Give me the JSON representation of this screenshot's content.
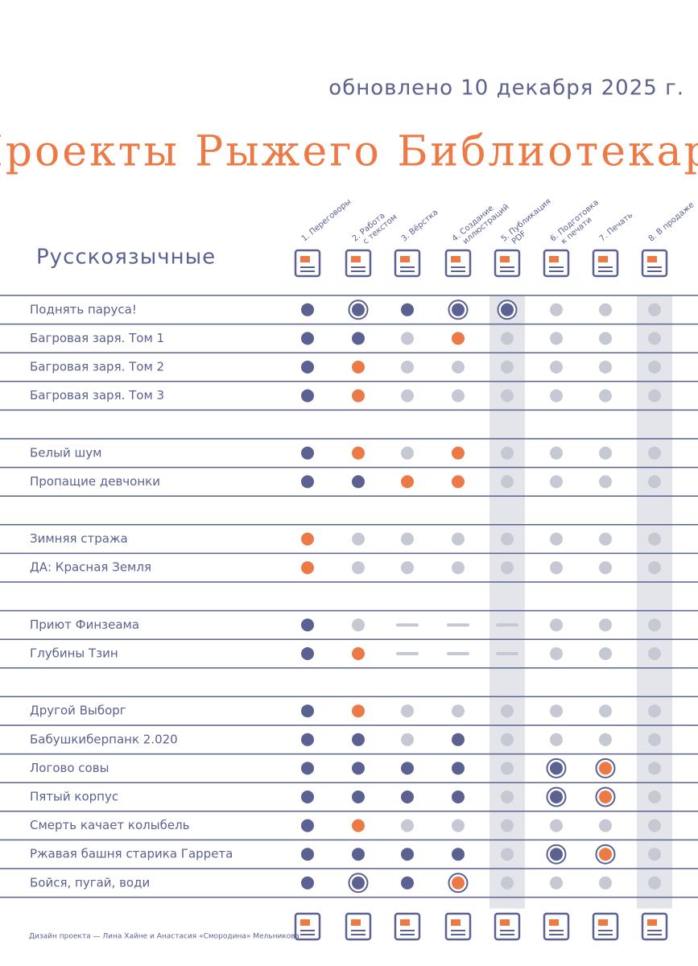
{
  "header": {
    "updated": "обновлено 10 декабря 2025 г.",
    "title": "Проекты Рыжего Библиотекаря",
    "section": "Русскоязычные"
  },
  "columns": [
    {
      "label": [
        "1. Переговоры"
      ]
    },
    {
      "label": [
        "2. Работа",
        "с текстом"
      ]
    },
    {
      "label": [
        "3. Вёрстка"
      ]
    },
    {
      "label": [
        "4. Создание",
        "иллюстраций"
      ]
    },
    {
      "label": [
        "5. Публикация",
        "PDF"
      ],
      "highlight": true
    },
    {
      "label": [
        "6. Подготовка",
        "к печати"
      ]
    },
    {
      "label": [
        "7. Печать"
      ]
    },
    {
      "label": [
        "8. В продаже"
      ],
      "highlight": true
    }
  ],
  "groups": [
    [
      {
        "title": "Поднять паруса!",
        "status": [
          "dark",
          "dark-ring",
          "dark",
          "dark-ring",
          "dark-ring",
          "gray",
          "gray",
          "gray"
        ]
      },
      {
        "title": "Багровая заря. Том 1",
        "status": [
          "dark",
          "dark",
          "gray",
          "orange",
          "gray",
          "gray",
          "gray",
          "gray"
        ]
      },
      {
        "title": "Багровая заря. Том 2",
        "status": [
          "dark",
          "orange",
          "gray",
          "gray",
          "gray",
          "gray",
          "gray",
          "gray"
        ]
      },
      {
        "title": "Багровая заря. Том 3",
        "status": [
          "dark",
          "orange",
          "gray",
          "gray",
          "gray",
          "gray",
          "gray",
          "gray"
        ]
      }
    ],
    [
      {
        "title": "Белый шум",
        "status": [
          "dark",
          "orange",
          "gray",
          "orange",
          "gray",
          "gray",
          "gray",
          "gray"
        ]
      },
      {
        "title": "Пропащие девчонки",
        "status": [
          "dark",
          "dark",
          "orange",
          "orange",
          "gray",
          "gray",
          "gray",
          "gray"
        ]
      }
    ],
    [
      {
        "title": "Зимняя стража",
        "status": [
          "orange",
          "gray",
          "gray",
          "gray",
          "gray",
          "gray",
          "gray",
          "gray"
        ]
      },
      {
        "title": "ДА: Красная Земля",
        "status": [
          "orange",
          "gray",
          "gray",
          "gray",
          "gray",
          "gray",
          "gray",
          "gray"
        ]
      }
    ],
    [
      {
        "title": "Приют Финзеама",
        "status": [
          "dark",
          "gray",
          "dash",
          "dash",
          "dash",
          "gray",
          "gray",
          "gray"
        ]
      },
      {
        "title": "Глубины Тзин",
        "status": [
          "dark",
          "orange",
          "dash",
          "dash",
          "dash",
          "gray",
          "gray",
          "gray"
        ]
      }
    ],
    [
      {
        "title": "Другой Выборг",
        "status": [
          "dark",
          "orange",
          "gray",
          "gray",
          "gray",
          "gray",
          "gray",
          "gray"
        ]
      },
      {
        "title": "Бабушкиберпанк 2.020",
        "status": [
          "dark",
          "dark",
          "gray",
          "dark",
          "gray",
          "gray",
          "gray",
          "gray"
        ]
      },
      {
        "title": "Логово совы",
        "status": [
          "dark",
          "dark",
          "dark",
          "dark",
          "gray",
          "dark-ring",
          "orange-ring",
          "gray"
        ]
      },
      {
        "title": "Пятый корпус",
        "status": [
          "dark",
          "dark",
          "dark",
          "dark",
          "gray",
          "dark-ring",
          "orange-ring",
          "gray"
        ]
      },
      {
        "title": "Смерть качает колыбель",
        "status": [
          "dark",
          "orange",
          "gray",
          "gray",
          "gray",
          "gray",
          "gray",
          "gray"
        ]
      },
      {
        "title": "Ржавая башня старика Гаррета",
        "status": [
          "dark",
          "dark",
          "dark",
          "dark",
          "gray",
          "dark-ring",
          "orange-ring",
          "gray"
        ]
      },
      {
        "title": "Бойся, пугай, води",
        "status": [
          "dark",
          "dark-ring",
          "dark",
          "orange-ring",
          "gray",
          "gray",
          "gray",
          "gray"
        ]
      }
    ]
  ],
  "footer": {
    "credits": "Дизайн проекта — Лина Хайне и Анастасия «Смородина» Мельникова"
  }
}
